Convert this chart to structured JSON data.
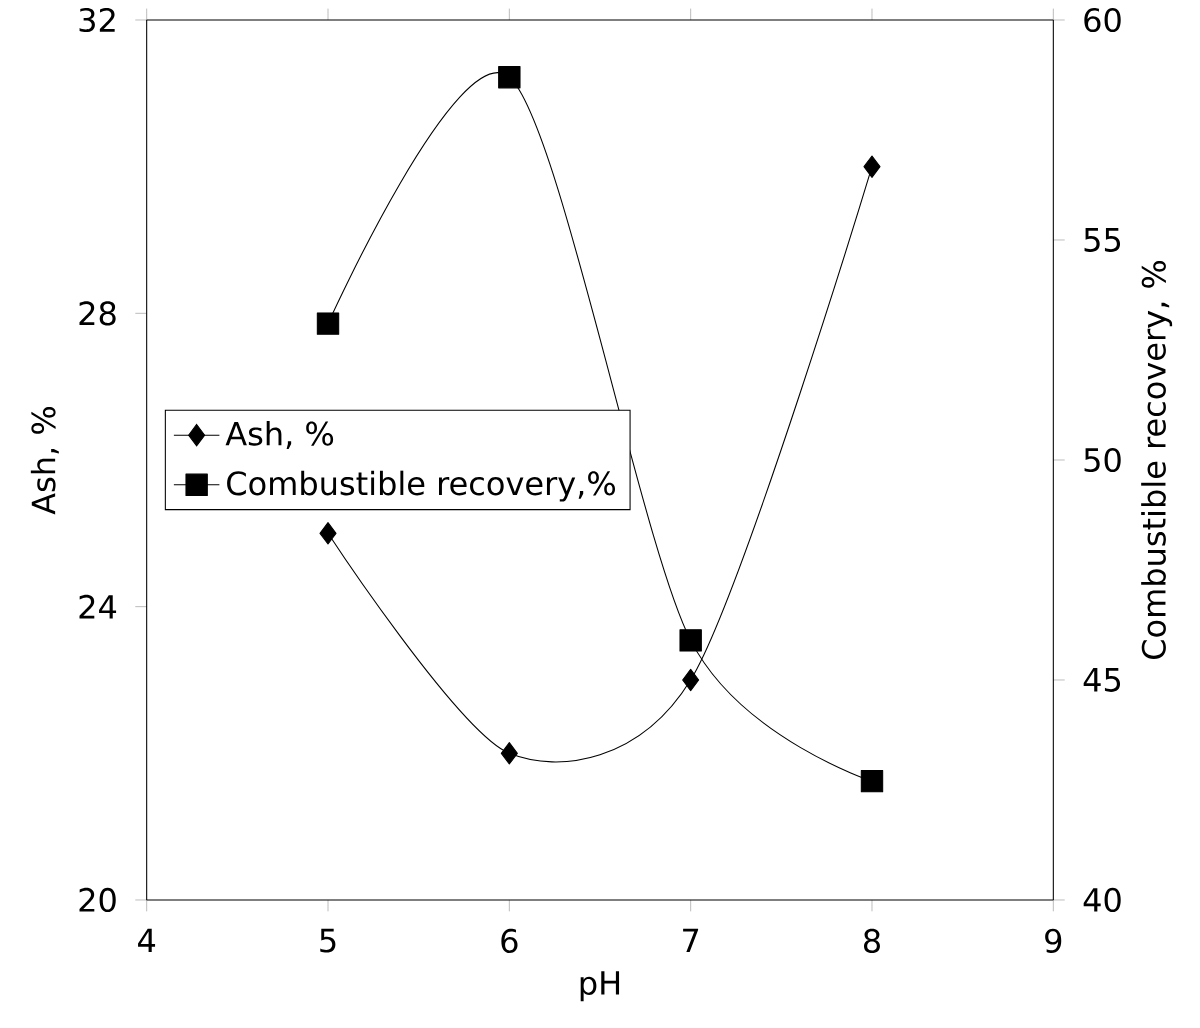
{
  "chart_data": {
    "type": "line",
    "xlabel": "pH",
    "ylabel": "Ash, %",
    "y2label": "Combustible recovery, %",
    "x": [
      5,
      6,
      7,
      8
    ],
    "series": [
      {
        "name": "Ash, %",
        "color": "#000000",
        "marker": "diamond",
        "values": [
          25.0,
          22.0,
          23.0,
          30.0
        ]
      },
      {
        "name": "Combustible recovery,%",
        "color": "#000000",
        "marker": "square",
        "axis": "y2",
        "values": [
          53.1,
          58.7,
          45.9,
          42.7
        ]
      }
    ],
    "xlim": [
      4,
      9
    ],
    "xticks": [
      4,
      5,
      6,
      7,
      8,
      9
    ],
    "ylim": [
      20,
      32
    ],
    "yticks": [
      20,
      24,
      28,
      32
    ],
    "y2lim": [
      40,
      60
    ],
    "y2ticks": [
      40,
      45,
      50,
      55,
      60
    ],
    "legend": "left",
    "grid": false,
    "line_style": "solid"
  }
}
